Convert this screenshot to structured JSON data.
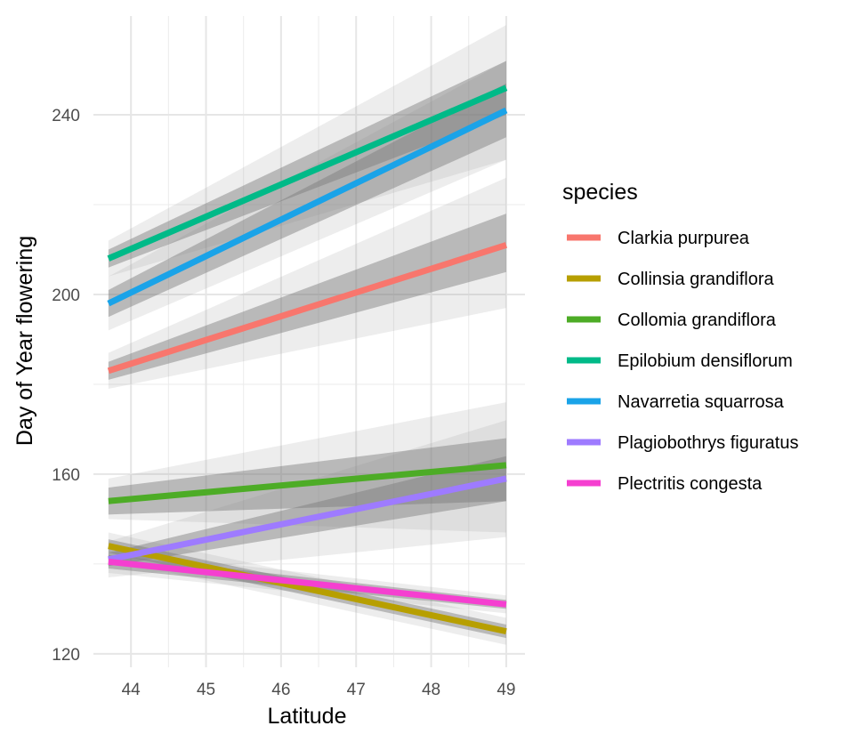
{
  "chart_data": {
    "type": "line",
    "xlabel": "Latitude",
    "ylabel": "Day of Year flowering",
    "xlim": [
      43.5,
      49.25
    ],
    "ylim": [
      117,
      262
    ],
    "x_ticks": [
      44,
      45,
      46,
      47,
      48,
      49
    ],
    "x_tick_labels": [
      "44",
      "45",
      "46",
      "47",
      "48",
      "49"
    ],
    "y_ticks": [
      120,
      160,
      200,
      240
    ],
    "y_tick_labels": [
      "120",
      "160",
      "200",
      "240"
    ],
    "grid": true,
    "legend": {
      "title": "species",
      "position": "right"
    },
    "series": [
      {
        "name": "Clarkia purpurea",
        "color": "#F8766D",
        "x": [
          43.7,
          49.0
        ],
        "y": [
          183,
          211
        ],
        "band_inner": {
          "lower": [
            181,
            205
          ],
          "upper": [
            185,
            218
          ]
        },
        "band_outer": {
          "lower": [
            179,
            197
          ],
          "upper": [
            187,
            226
          ]
        }
      },
      {
        "name": "Collinsia grandiflora",
        "color": "#B79F00",
        "x": [
          43.7,
          49.0
        ],
        "y": [
          144,
          125
        ],
        "band_inner": {
          "lower": [
            142.5,
            123.5
          ],
          "upper": [
            145.5,
            126.5
          ]
        },
        "band_outer": {
          "lower": [
            141,
            122
          ],
          "upper": [
            147,
            128
          ]
        }
      },
      {
        "name": "Collomia grandiflora",
        "color": "#4DAC26",
        "x": [
          43.7,
          49.0
        ],
        "y": [
          154,
          162
        ],
        "band_inner": {
          "lower": [
            151,
            154
          ],
          "upper": [
            157,
            168
          ]
        },
        "band_outer": {
          "lower": [
            150,
            147
          ],
          "upper": [
            159,
            176
          ]
        }
      },
      {
        "name": "Epilobium densiflorum",
        "color": "#00BA88",
        "x": [
          43.7,
          49.0
        ],
        "y": [
          208,
          246
        ],
        "band_inner": {
          "lower": [
            206,
            240
          ],
          "upper": [
            210,
            252
          ]
        },
        "band_outer": {
          "lower": [
            204,
            230
          ],
          "upper": [
            212,
            260
          ]
        }
      },
      {
        "name": "Navarretia squarrosa",
        "color": "#1AA3E8",
        "x": [
          43.7,
          49.0
        ],
        "y": [
          198,
          241
        ],
        "band_inner": {
          "lower": [
            195,
            235
          ],
          "upper": [
            201,
            247
          ]
        },
        "band_outer": {
          "lower": [
            192,
            230
          ],
          "upper": [
            204,
            252
          ]
        }
      },
      {
        "name": "Plagiobothrys figuratus",
        "color": "#9E7BFF",
        "x": [
          43.7,
          49.0
        ],
        "y": [
          141,
          159
        ],
        "band_inner": {
          "lower": [
            139.5,
            154
          ],
          "upper": [
            142.5,
            164
          ]
        },
        "band_outer": {
          "lower": [
            137,
            146
          ],
          "upper": [
            145,
            172
          ]
        }
      },
      {
        "name": "Plectritis congesta",
        "color": "#F53FD0",
        "x": [
          43.7,
          49.0
        ],
        "y": [
          140.5,
          131
        ],
        "band_inner": {
          "lower": [
            139,
            130
          ],
          "upper": [
            142,
            132
          ]
        },
        "band_outer": {
          "lower": [
            138,
            129
          ],
          "upper": [
            143,
            133
          ]
        }
      }
    ]
  }
}
